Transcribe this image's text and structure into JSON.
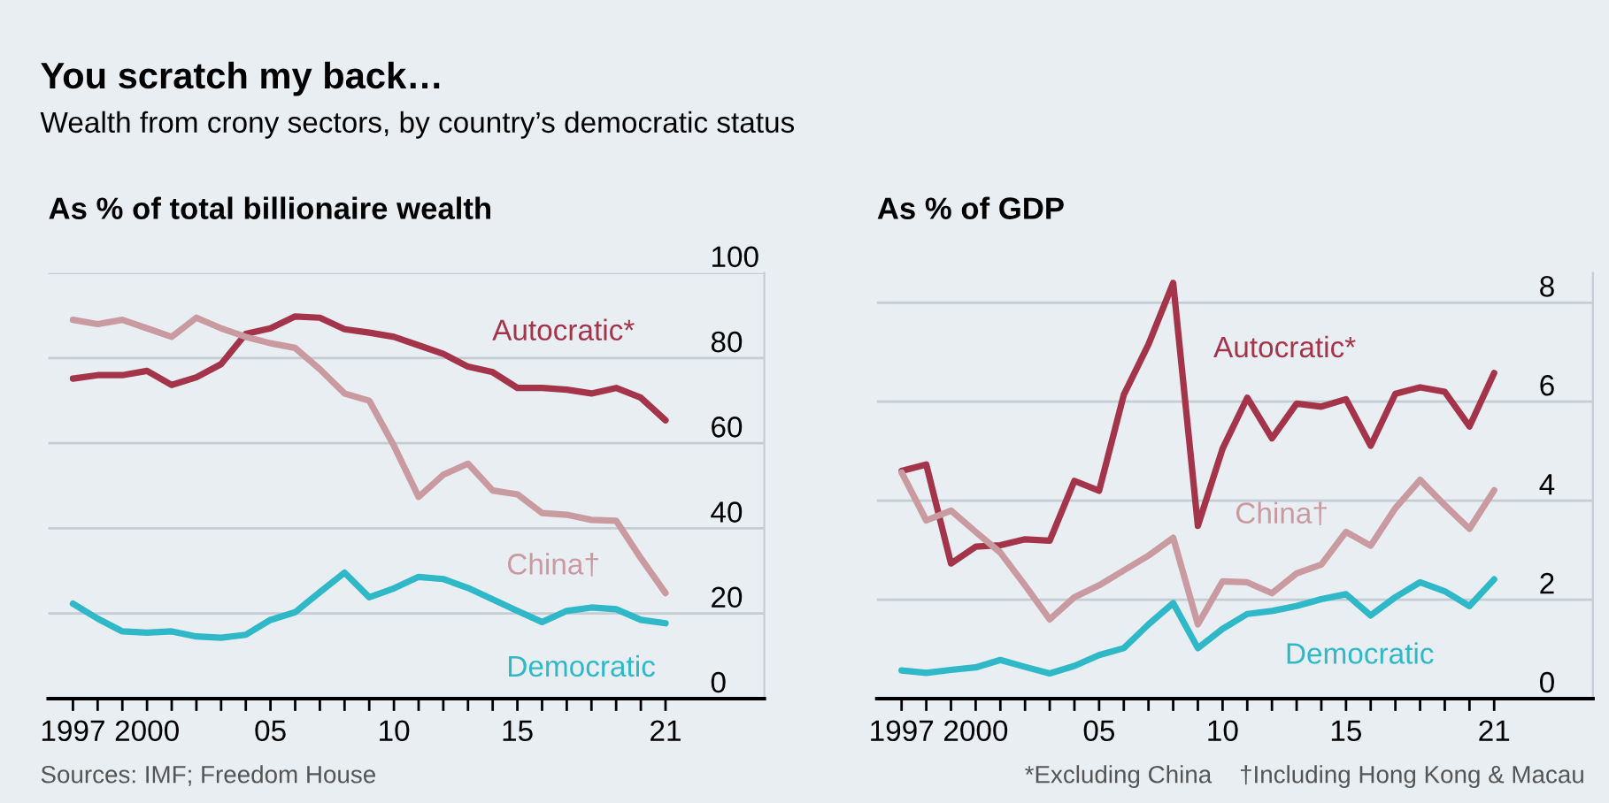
{
  "chart_data": [
    {
      "type": "line",
      "title": "As % of total billionaire wealth",
      "annotations": [
        "You scratch my back…",
        "Wealth from crony sectors, by country’s democratic status",
        "Sources: IMF; Freedom House"
      ],
      "x": [
        1997,
        1998,
        1999,
        2000,
        2001,
        2002,
        2003,
        2004,
        2005,
        2006,
        2007,
        2008,
        2009,
        2010,
        2011,
        2012,
        2013,
        2014,
        2015,
        2016,
        2017,
        2018,
        2019,
        2020,
        2021
      ],
      "series": [
        {
          "name": "Autocratic*",
          "color": "#a4344a",
          "values": [
            75.2,
            76,
            76,
            77,
            73.7,
            75.5,
            78.6,
            85.7,
            87,
            89.8,
            89.5,
            86.8,
            86,
            85,
            83,
            81,
            78,
            76.7,
            73,
            73,
            72.6,
            71.7,
            73,
            70.7,
            65.4
          ]
        },
        {
          "name": "China†",
          "color": "#c99aa0",
          "values": [
            89,
            88,
            89,
            87,
            85,
            89.5,
            87,
            85,
            83.5,
            82.4,
            77.4,
            71.7,
            70,
            59.4,
            47.4,
            52.6,
            55.2,
            48.9,
            48,
            43.6,
            43.2,
            42,
            41.8,
            33,
            24.8
          ]
        },
        {
          "name": "Democratic",
          "color": "#2fb8c8",
          "values": [
            22.3,
            18.8,
            15.8,
            15.5,
            15.8,
            14.6,
            14.3,
            15,
            18.5,
            20.3,
            25,
            29.6,
            23.8,
            25.9,
            28.6,
            28.1,
            26,
            23.3,
            20.6,
            18,
            20.6,
            21.4,
            21,
            18.5,
            17.7
          ]
        }
      ],
      "xlim": [
        1996,
        2025
      ],
      "xticks": [
        1997,
        {
          "value": 1998,
          "label": null
        },
        {
          "value": 1999,
          "label": null
        },
        2000,
        {
          "value": 2001,
          "label": null
        },
        {
          "value": 2002,
          "label": null
        },
        {
          "value": 2003,
          "label": null
        },
        {
          "value": 2004,
          "label": null
        },
        {
          "value": 2005,
          "label": "05"
        },
        {
          "value": 2006,
          "label": null
        },
        {
          "value": 2007,
          "label": null
        },
        {
          "value": 2008,
          "label": null
        },
        {
          "value": 2009,
          "label": null
        },
        {
          "value": 2010,
          "label": "10"
        },
        {
          "value": 2011,
          "label": null
        },
        {
          "value": 2012,
          "label": null
        },
        {
          "value": 2013,
          "label": null
        },
        {
          "value": 2014,
          "label": null
        },
        {
          "value": 2015,
          "label": "15"
        },
        {
          "value": 2016,
          "label": null
        },
        {
          "value": 2017,
          "label": null
        },
        {
          "value": 2018,
          "label": null
        },
        {
          "value": 2019,
          "label": null
        },
        {
          "value": 2020,
          "label": null
        },
        {
          "value": 2021,
          "label": "21"
        }
      ],
      "ylim": [
        0,
        100
      ],
      "yticks": [
        0,
        20,
        40,
        60,
        80,
        100
      ],
      "grid": "y",
      "legend": false
    },
    {
      "type": "line",
      "title": "As % of GDP",
      "annotations": [
        "*Excluding China",
        "†Including Hong Kong & Macau"
      ],
      "x": [
        1997,
        1998,
        1999,
        2000,
        2001,
        2002,
        2003,
        2004,
        2005,
        2006,
        2007,
        2008,
        2009,
        2010,
        2011,
        2012,
        2013,
        2014,
        2015,
        2016,
        2017,
        2018,
        2019,
        2020,
        2021
      ],
      "series": [
        {
          "name": "Autocratic*",
          "color": "#a4344a",
          "values": [
            4.6,
            4.73,
            2.73,
            3.07,
            3.1,
            3.22,
            3.19,
            4.4,
            4.2,
            6.14,
            7.16,
            8.4,
            3.49,
            5.05,
            6.08,
            5.26,
            5.96,
            5.9,
            6.05,
            5.11,
            6.16,
            6.29,
            6.2,
            5.5,
            6.58
          ]
        },
        {
          "name": "China†",
          "color": "#c99aa0",
          "values": [
            4.57,
            3.6,
            3.8,
            3.37,
            2.95,
            2.29,
            1.6,
            2.05,
            2.29,
            2.59,
            2.89,
            3.25,
            1.5,
            2.37,
            2.35,
            2.13,
            2.53,
            2.71,
            3.37,
            3.09,
            3.85,
            4.42,
            3.91,
            3.43,
            4.21
          ]
        },
        {
          "name": "Democratic",
          "color": "#2fb8c8",
          "values": [
            0.57,
            0.52,
            0.58,
            0.63,
            0.78,
            0.64,
            0.51,
            0.66,
            0.88,
            1.02,
            1.5,
            1.93,
            1.02,
            1.41,
            1.71,
            1.77,
            1.87,
            2.01,
            2.11,
            1.68,
            2.05,
            2.35,
            2.17,
            1.87,
            2.41
          ]
        }
      ],
      "xlim": [
        1996,
        2025
      ],
      "xticks": [
        1997,
        {
          "value": 1998,
          "label": null
        },
        {
          "value": 1999,
          "label": null
        },
        2000,
        {
          "value": 2001,
          "label": null
        },
        {
          "value": 2002,
          "label": null
        },
        {
          "value": 2003,
          "label": null
        },
        {
          "value": 2004,
          "label": null
        },
        {
          "value": 2005,
          "label": "05"
        },
        {
          "value": 2006,
          "label": null
        },
        {
          "value": 2007,
          "label": null
        },
        {
          "value": 2008,
          "label": null
        },
        {
          "value": 2009,
          "label": null
        },
        {
          "value": 2010,
          "label": "10"
        },
        {
          "value": 2011,
          "label": null
        },
        {
          "value": 2012,
          "label": null
        },
        {
          "value": 2013,
          "label": null
        },
        {
          "value": 2014,
          "label": null
        },
        {
          "value": 2015,
          "label": "15"
        },
        {
          "value": 2016,
          "label": null
        },
        {
          "value": 2017,
          "label": null
        },
        {
          "value": 2018,
          "label": null
        },
        {
          "value": 2019,
          "label": null
        },
        {
          "value": 2020,
          "label": null
        },
        {
          "value": 2021,
          "label": "21"
        }
      ],
      "ylim": [
        0,
        8.6
      ],
      "yticks": [
        0,
        2,
        4,
        6,
        8
      ],
      "grid": "y",
      "legend": false
    }
  ]
}
